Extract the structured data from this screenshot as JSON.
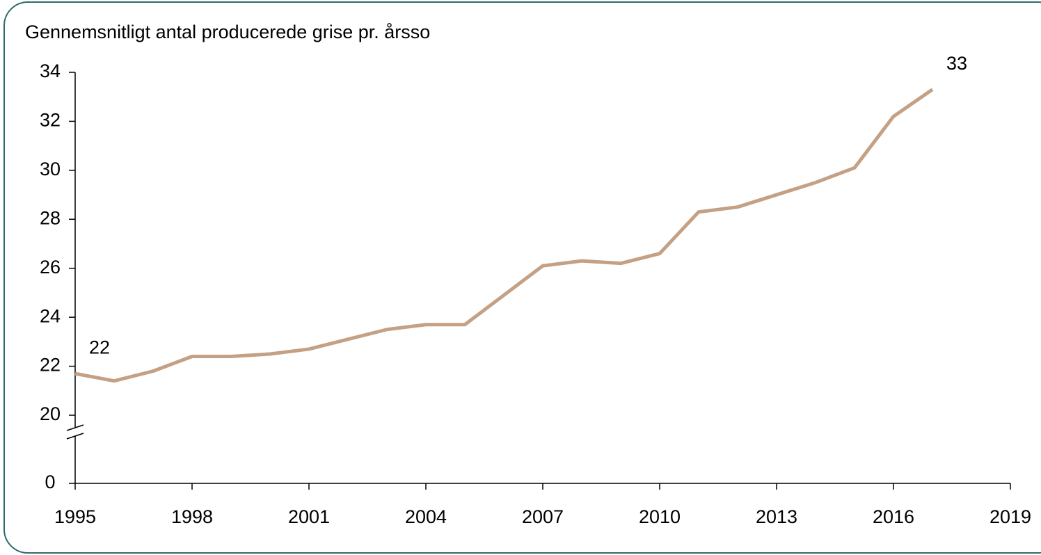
{
  "chart_data": {
    "type": "line",
    "title": "Gennemsnitligt antal producerede grise pr. årsso",
    "x": [
      1995,
      1996,
      1997,
      1998,
      1999,
      2000,
      2001,
      2002,
      2003,
      2004,
      2005,
      2006,
      2007,
      2008,
      2009,
      2010,
      2011,
      2012,
      2013,
      2014,
      2015,
      2016,
      2017
    ],
    "values": [
      21.7,
      21.4,
      21.8,
      22.4,
      22.4,
      22.5,
      22.7,
      23.1,
      23.5,
      23.7,
      23.7,
      24.9,
      26.1,
      26.3,
      26.2,
      26.6,
      28.3,
      28.5,
      29.0,
      29.5,
      30.1,
      32.2,
      33.3
    ],
    "value_labels": [
      "22",
      null,
      null,
      null,
      null,
      null,
      null,
      null,
      null,
      null,
      null,
      null,
      null,
      null,
      null,
      null,
      null,
      null,
      null,
      null,
      null,
      null,
      "33"
    ],
    "color": "#c4a084",
    "xlim": [
      1995,
      2019
    ],
    "xticks": [
      1995,
      1998,
      2001,
      2004,
      2007,
      2010,
      2013,
      2016,
      2019
    ],
    "ylim": [
      0,
      34
    ],
    "yticks": [
      0,
      20,
      22,
      24,
      26,
      28,
      30,
      32,
      34
    ],
    "axis_break": true,
    "grid": false
  }
}
